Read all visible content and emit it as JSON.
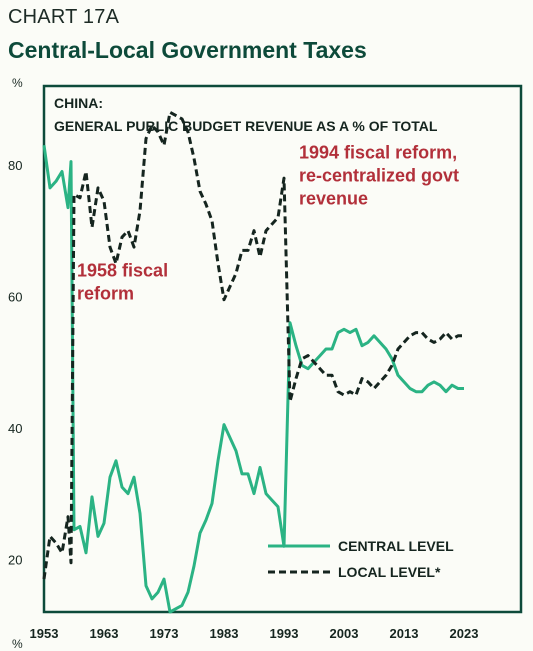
{
  "header": {
    "eyebrow": "CHART 17A",
    "title": "Central-Local Government Taxes"
  },
  "units": {
    "top": "%",
    "bottom": "%"
  },
  "chart_data": {
    "type": "line",
    "title": "CHINA:",
    "subtitle": "GENERAL PUBLIC BUDGET REVENUE AS A % OF TOTAL",
    "xlabel": "",
    "ylabel": "%",
    "xlim": [
      1953,
      2024
    ],
    "ylim": [
      12,
      92
    ],
    "x_ticks": [
      1953,
      1963,
      1973,
      1983,
      1993,
      2003,
      2013,
      2023
    ],
    "y_ticks": [
      20,
      40,
      60,
      80
    ],
    "grid": false,
    "legend_position": "bottom-right",
    "colors": {
      "central": "#2bb384",
      "local": "#15251f",
      "annotation": "#b2303a",
      "frame": "#0d4a3a"
    },
    "annotations": [
      {
        "lines": [
          "1958 fiscal",
          "reform"
        ],
        "x": 1958.5,
        "y": 63
      },
      {
        "lines": [
          "1994 fiscal reform,",
          "re-centralized govt",
          "revenue"
        ],
        "x": 1995.5,
        "y": 81
      }
    ],
    "series": [
      {
        "name": "CENTRAL LEVEL",
        "style": "solid",
        "x": [
          1953,
          1954,
          1955,
          1956,
          1957,
          1957.5,
          1958,
          1959,
          1960,
          1961,
          1962,
          1963,
          1964,
          1965,
          1966,
          1967,
          1968,
          1969,
          1970,
          1971,
          1972,
          1973,
          1974,
          1975,
          1976,
          1977,
          1978,
          1979,
          1980,
          1981,
          1982,
          1983,
          1984,
          1985,
          1986,
          1987,
          1988,
          1989,
          1990,
          1991,
          1992,
          1993,
          1994,
          1995,
          1996,
          1997,
          1998,
          1999,
          2000,
          2001,
          2002,
          2003,
          2004,
          2005,
          2006,
          2007,
          2008,
          2009,
          2010,
          2011,
          2012,
          2013,
          2014,
          2015,
          2016,
          2017,
          2018,
          2019,
          2020,
          2021,
          2022,
          2023
        ],
        "values": [
          83,
          76.5,
          77.5,
          79,
          73.5,
          80.5,
          24.5,
          25,
          21,
          29.5,
          23.5,
          25.5,
          32.5,
          35,
          31,
          30,
          32.5,
          27,
          16,
          14,
          15,
          17,
          12,
          12.5,
          13,
          15,
          19,
          24,
          26,
          28.5,
          35,
          40.5,
          38.5,
          36.5,
          33,
          33,
          30,
          34,
          30,
          29,
          28,
          22,
          56,
          52.5,
          49.5,
          49,
          50,
          51,
          52,
          52,
          54.5,
          55,
          54.5,
          55,
          52.5,
          53,
          54,
          53,
          52,
          50.5,
          48,
          47,
          46,
          45.5,
          45.5,
          46.5,
          47,
          46.5,
          45.5,
          46.5,
          46,
          46
        ]
      },
      {
        "name": "LOCAL LEVEL*",
        "style": "dashed",
        "x": [
          1953,
          1954,
          1955,
          1956,
          1957,
          1957.5,
          1958,
          1959,
          1960,
          1961,
          1962,
          1963,
          1964,
          1965,
          1966,
          1967,
          1968,
          1969,
          1970,
          1971,
          1972,
          1973,
          1974,
          1975,
          1976,
          1977,
          1978,
          1979,
          1980,
          1981,
          1982,
          1983,
          1984,
          1985,
          1986,
          1987,
          1988,
          1989,
          1990,
          1991,
          1992,
          1993,
          1994,
          1995,
          1996,
          1997,
          1998,
          1999,
          2000,
          2001,
          2002,
          2003,
          2004,
          2005,
          2006,
          2007,
          2008,
          2009,
          2010,
          2011,
          2012,
          2013,
          2014,
          2015,
          2016,
          2017,
          2018,
          2019,
          2020,
          2021,
          2022,
          2023
        ],
        "values": [
          17,
          23.5,
          22.5,
          21,
          26.5,
          19.5,
          75.5,
          75,
          79,
          70.5,
          76.5,
          74.5,
          67.5,
          65,
          69,
          70,
          67.5,
          73,
          84,
          86,
          85,
          83,
          88,
          87.5,
          87,
          85,
          81,
          76,
          74,
          71.5,
          65,
          59.5,
          61.5,
          63.5,
          67,
          67,
          70,
          66,
          70,
          71,
          72,
          78,
          44,
          47.5,
          50.5,
          51,
          50,
          49,
          48,
          48,
          45.5,
          45,
          45.5,
          45,
          47.5,
          47,
          46,
          47,
          48,
          49.5,
          52,
          53,
          54,
          54.5,
          54.5,
          53.5,
          53,
          53.5,
          54.5,
          53.5,
          54,
          54
        ]
      }
    ]
  }
}
